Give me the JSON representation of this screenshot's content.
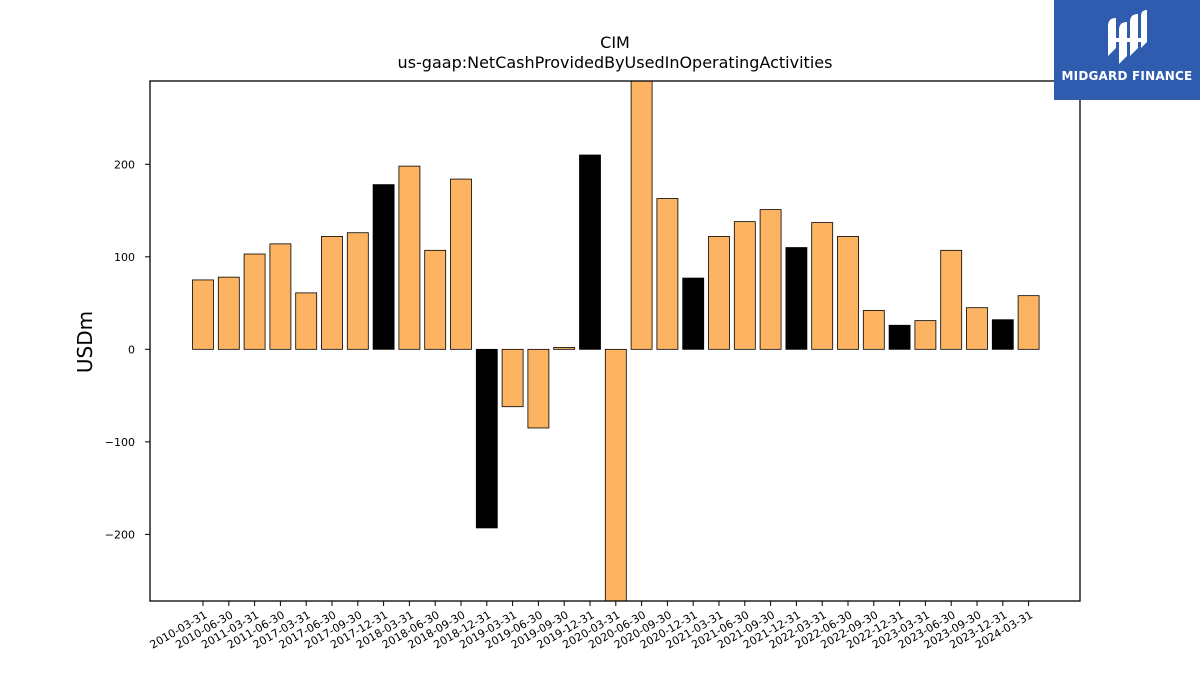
{
  "chart_data": {
    "type": "bar",
    "title": "CIM",
    "subtitle": "us-gaap:NetCashProvidedByUsedInOperatingActivities",
    "xlabel": "",
    "ylabel": "USDm",
    "ylim": [
      -272,
      290
    ],
    "yticks": [
      -200,
      -100,
      0,
      100,
      200
    ],
    "ytick_labels": [
      "−200",
      "−100",
      "0",
      "100",
      "200"
    ],
    "grid": false,
    "categories": [
      "2010-03-31",
      "2010-06-30",
      "2011-03-31",
      "2011-06-30",
      "2017-03-31",
      "2017-06-30",
      "2017-09-30",
      "2017-12-31",
      "2018-03-31",
      "2018-06-30",
      "2018-09-30",
      "2018-12-31",
      "2019-03-31",
      "2019-06-30",
      "2019-09-30",
      "2019-12-31",
      "2020-03-31",
      "2020-06-30",
      "2020-09-30",
      "2020-12-31",
      "2021-03-31",
      "2021-06-30",
      "2021-09-30",
      "2021-12-31",
      "2022-03-31",
      "2022-06-30",
      "2022-09-30",
      "2022-12-31",
      "2023-03-31",
      "2023-06-30",
      "2023-09-30",
      "2023-12-31",
      "2024-03-31"
    ],
    "values": [
      75,
      78,
      103,
      114,
      61,
      122,
      126,
      178,
      198,
      107,
      184,
      -193,
      -62,
      -85,
      2,
      210,
      -272,
      290,
      163,
      77,
      122,
      138,
      151,
      110,
      137,
      122,
      42,
      26,
      31,
      107,
      45,
      32,
      58
    ],
    "highlight": [
      false,
      false,
      false,
      false,
      false,
      false,
      false,
      true,
      false,
      false,
      false,
      true,
      false,
      false,
      false,
      true,
      false,
      false,
      false,
      true,
      false,
      false,
      false,
      true,
      false,
      false,
      false,
      true,
      false,
      false,
      false,
      true,
      false
    ],
    "colors": {
      "normal": "#fdb462",
      "highlight": "#000000",
      "edge": "#000000"
    }
  },
  "logo": {
    "text": "MIDGARD FINANCE",
    "background": "#2f5cae"
  }
}
